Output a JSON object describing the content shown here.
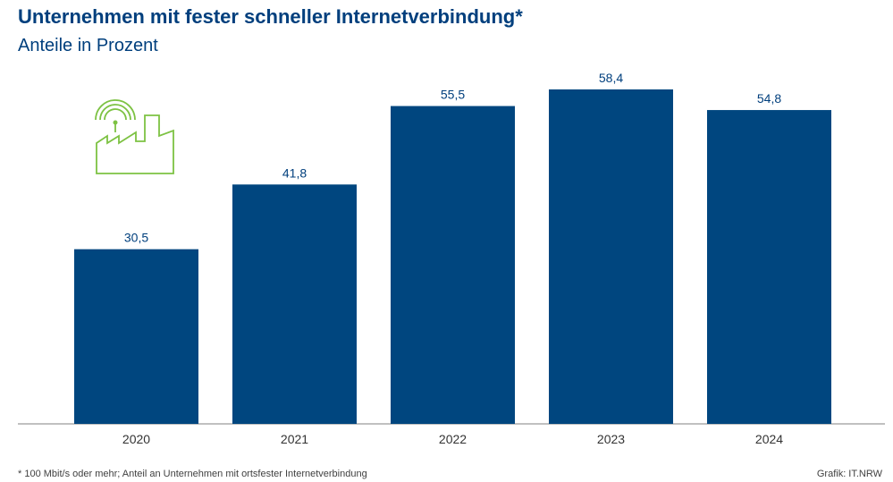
{
  "header": {
    "title": "Unternehmen mit fester schneller Internetverbindung*",
    "subtitle": "Anteile in Prozent"
  },
  "footer": {
    "footnote": "* 100 Mbit/s oder mehr; Anteil an Unternehmen mit ortsfester Internetverbindung",
    "source": "Grafik: IT.NRW"
  },
  "colors": {
    "bar": "#00467f",
    "text": "#003f7d",
    "icon": "#7dc243",
    "axis": "#9a9a9a"
  },
  "icon": "factory-wifi-icon",
  "chart_data": {
    "type": "bar",
    "title": "Unternehmen mit fester schneller Internetverbindung*",
    "subtitle": "Anteile in Prozent",
    "categories": [
      "2020",
      "2021",
      "2022",
      "2023",
      "2024"
    ],
    "values": [
      30.5,
      41.8,
      55.5,
      58.4,
      54.8
    ],
    "value_labels": [
      "30,5",
      "41,8",
      "55,5",
      "58,4",
      "54,8"
    ],
    "xlabel": "",
    "ylabel": "",
    "ylim": [
      0,
      62
    ],
    "grid": false,
    "legend": "none"
  }
}
